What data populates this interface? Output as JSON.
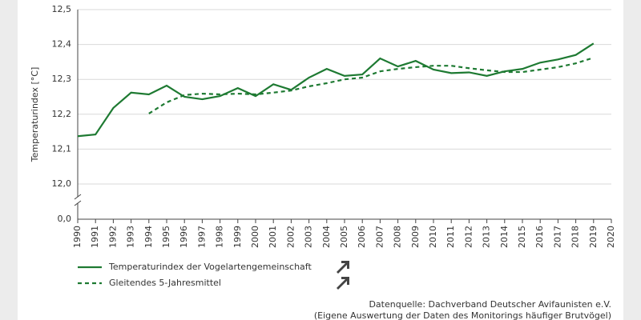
{
  "chart_data": {
    "type": "line",
    "y_label": "Temperaturindex [°C]",
    "x": [
      1990,
      1991,
      1992,
      1993,
      1994,
      1995,
      1996,
      1997,
      1998,
      1999,
      2000,
      2001,
      2002,
      2003,
      2004,
      2005,
      2006,
      2007,
      2008,
      2009,
      2010,
      2011,
      2012,
      2013,
      2014,
      2015,
      2016,
      2017,
      2018,
      2019
    ],
    "series": [
      {
        "name": "Temperaturindex der Vogelartengemeinschaft",
        "color": "#1e7a32",
        "dash": "solid",
        "values": [
          12.137,
          12.142,
          12.218,
          12.262,
          12.257,
          12.282,
          12.25,
          12.243,
          12.252,
          12.275,
          12.252,
          12.286,
          12.27,
          12.305,
          12.33,
          12.31,
          12.314,
          12.36,
          12.337,
          12.353,
          12.328,
          12.318,
          12.32,
          12.31,
          12.323,
          12.33,
          12.348,
          12.357,
          12.37,
          12.403
        ]
      },
      {
        "name": "Gleitendes 5-Jahresmittel",
        "color": "#1e7a32",
        "dash": "dashed",
        "values": [
          null,
          null,
          null,
          null,
          12.202,
          12.234,
          12.255,
          12.259,
          12.257,
          12.259,
          12.257,
          12.262,
          12.268,
          12.28,
          12.289,
          12.3,
          12.305,
          12.323,
          12.33,
          12.335,
          12.339,
          12.339,
          12.332,
          12.326,
          12.321,
          12.321,
          12.328,
          12.335,
          12.346,
          12.362
        ]
      }
    ],
    "xlim": [
      1990,
      2020
    ],
    "xticks": [
      1990,
      1991,
      1992,
      1993,
      1994,
      1995,
      1996,
      1997,
      1998,
      1999,
      2000,
      2001,
      2002,
      2003,
      2004,
      2005,
      2006,
      2007,
      2008,
      2009,
      2010,
      2011,
      2012,
      2013,
      2014,
      2015,
      2016,
      2017,
      2018,
      2019,
      2020
    ],
    "ylim": [
      12.0,
      12.5
    ],
    "yticks": [
      {
        "value": 0,
        "label": "0,0"
      },
      {
        "value": 12.0,
        "label": "12,0"
      },
      {
        "value": 12.1,
        "label": "12,1"
      },
      {
        "value": 12.2,
        "label": "12,2"
      },
      {
        "value": 12.3,
        "label": "12,3"
      },
      {
        "value": 12.4,
        "label": "12,4"
      },
      {
        "value": 12.5,
        "label": "12,5"
      }
    ],
    "axis_break": true,
    "grid": true,
    "source": [
      "Datenquelle: Dachverband Deutscher Avifaunisten e.V.",
      "(Eigene Auswertung der Daten des Monitorings häufiger Brutvögel)"
    ]
  }
}
